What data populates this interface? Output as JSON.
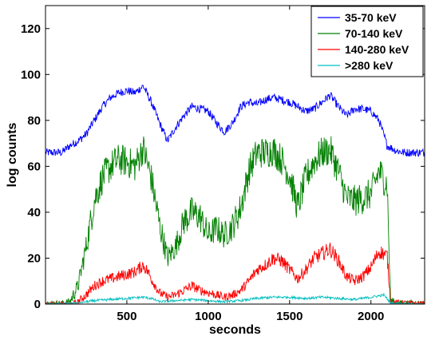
{
  "chart_data": {
    "type": "line",
    "title": "",
    "xlabel": "seconds",
    "ylabel": "log counts",
    "xlim": [
      0,
      2330
    ],
    "ylim": [
      0,
      130
    ],
    "xticks": [
      500,
      1000,
      1500,
      2000
    ],
    "yticks": [
      0,
      20,
      40,
      60,
      80,
      100,
      120
    ],
    "grid": false,
    "legend_position": "top-right",
    "series": [
      {
        "name": "35-70 keV",
        "color": "#0000ff",
        "x": [
          0,
          100,
          150,
          200,
          250,
          300,
          350,
          400,
          450,
          500,
          550,
          600,
          650,
          700,
          750,
          800,
          850,
          900,
          950,
          1000,
          1050,
          1100,
          1150,
          1200,
          1250,
          1300,
          1350,
          1400,
          1450,
          1500,
          1550,
          1600,
          1650,
          1700,
          1750,
          1800,
          1850,
          1900,
          1950,
          2000,
          2050,
          2100,
          2150,
          2200,
          2330
        ],
        "y": [
          66,
          66,
          69,
          71,
          74,
          80,
          86,
          90,
          92,
          93,
          92,
          95,
          88,
          79,
          71,
          77,
          82,
          86,
          85,
          84,
          79,
          75,
          79,
          86,
          88,
          87,
          89,
          90,
          89,
          88,
          86,
          84,
          85,
          88,
          91,
          86,
          82,
          85,
          85,
          84,
          80,
          69,
          67,
          66,
          66
        ]
      },
      {
        "name": "70-140 keV",
        "color": "#008000",
        "x": [
          0,
          100,
          150,
          200,
          250,
          300,
          350,
          400,
          450,
          500,
          550,
          600,
          650,
          700,
          750,
          800,
          850,
          900,
          950,
          1000,
          1050,
          1100,
          1150,
          1200,
          1250,
          1300,
          1350,
          1400,
          1450,
          1500,
          1550,
          1600,
          1650,
          1700,
          1750,
          1800,
          1850,
          1900,
          1950,
          2000,
          2050,
          2100,
          2120,
          2150,
          2330
        ],
        "y": [
          0,
          0,
          1,
          8,
          25,
          45,
          55,
          60,
          63,
          62,
          60,
          68,
          55,
          35,
          20,
          25,
          36,
          40,
          38,
          30,
          33,
          30,
          34,
          42,
          58,
          66,
          66,
          67,
          63,
          56,
          42,
          55,
          62,
          66,
          67,
          58,
          46,
          45,
          46,
          48,
          58,
          52,
          2,
          0,
          0
        ]
      },
      {
        "name": "140-280 keV",
        "color": "#ff0000",
        "x": [
          0,
          150,
          200,
          250,
          300,
          350,
          400,
          450,
          500,
          550,
          600,
          630,
          650,
          700,
          750,
          800,
          850,
          900,
          950,
          1000,
          1050,
          1100,
          1150,
          1200,
          1250,
          1300,
          1350,
          1400,
          1450,
          1500,
          1550,
          1600,
          1650,
          1700,
          1750,
          1800,
          1850,
          1900,
          1950,
          2000,
          2050,
          2100,
          2120,
          2330
        ],
        "y": [
          0,
          0,
          1,
          4,
          8,
          10,
          11,
          12,
          13,
          14,
          17,
          14,
          11,
          5,
          3,
          4,
          6,
          8,
          6,
          5,
          4,
          3,
          4,
          6,
          10,
          15,
          17,
          20,
          19,
          15,
          11,
          15,
          20,
          22,
          24,
          19,
          12,
          10,
          12,
          16,
          23,
          21,
          1,
          0
        ]
      },
      {
        "name": ">280 keV",
        "color": "#00bfbf",
        "x": [
          0,
          200,
          300,
          400,
          500,
          600,
          650,
          700,
          800,
          900,
          1000,
          1100,
          1200,
          1300,
          1400,
          1500,
          1600,
          1700,
          1800,
          1900,
          2000,
          2080,
          2120,
          2330
        ],
        "y": [
          0,
          0.5,
          1.5,
          2,
          2.5,
          3,
          2.5,
          1,
          1.5,
          2,
          1.5,
          1,
          1.5,
          2.5,
          3,
          3,
          2.5,
          3,
          2.5,
          2,
          3,
          4,
          0.5,
          0
        ]
      }
    ]
  }
}
